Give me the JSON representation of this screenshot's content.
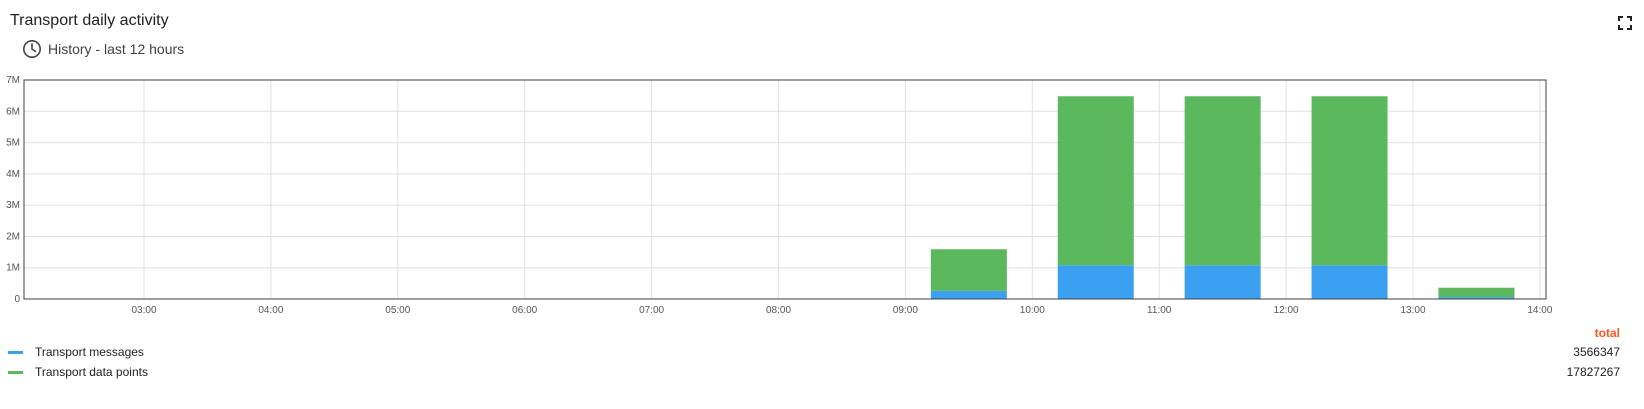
{
  "header": {
    "title": "Transport daily activity",
    "subtitle": "History - last 12 hours"
  },
  "icons": {
    "history": "clock-icon",
    "fullscreen": "fullscreen-icon"
  },
  "colors": {
    "messages": "#3ba0f0",
    "data_points": "#5cb85c",
    "total": "#ff5722"
  },
  "chart_data": {
    "type": "bar",
    "stacked": true,
    "categories": [
      "03:00",
      "04:00",
      "05:00",
      "06:00",
      "07:00",
      "08:00",
      "09:00",
      "10:00",
      "11:00",
      "12:00",
      "13:00",
      "14:00"
    ],
    "x_tick_labels": [
      "03:00",
      "04:00",
      "05:00",
      "06:00",
      "07:00",
      "08:00",
      "09:00",
      "10:00",
      "11:00",
      "12:00",
      "13:00",
      "14:00"
    ],
    "series": [
      {
        "name": "Transport messages",
        "values": [
          0,
          0,
          0,
          0,
          0,
          0,
          0,
          260000,
          1080000,
          1080000,
          1080000,
          60000
        ]
      },
      {
        "name": "Transport data points",
        "values": [
          0,
          0,
          0,
          0,
          0,
          0,
          0,
          1330000,
          5400000,
          5400000,
          5400000,
          300000
        ]
      }
    ],
    "y_ticks": [
      "0",
      "1M",
      "2M",
      "3M",
      "4M",
      "5M",
      "6M",
      "7M"
    ],
    "ylim": [
      0,
      7000000
    ],
    "grid": true
  },
  "legend": {
    "total_header": "total",
    "items": [
      {
        "label": "Transport messages",
        "total": "3566347"
      },
      {
        "label": "Transport data points",
        "total": "17827267"
      }
    ]
  }
}
